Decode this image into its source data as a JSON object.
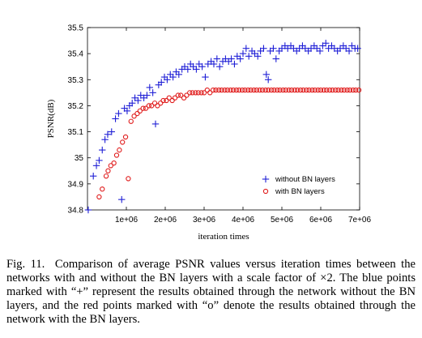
{
  "chart_data": {
    "type": "scatter",
    "title": "",
    "xlabel": "iteration times",
    "ylabel": "PSNR(dB)",
    "xlim": [
      0,
      7000000
    ],
    "ylim": [
      34.8,
      35.5
    ],
    "xticks": [
      1000000,
      2000000,
      3000000,
      4000000,
      5000000,
      6000000,
      7000000
    ],
    "xtick_labels": [
      "1e+06",
      "2e+06",
      "3e+06",
      "4e+06",
      "5e+06",
      "6e+06",
      "7e+06"
    ],
    "yticks": [
      34.8,
      34.9,
      35.0,
      35.1,
      35.2,
      35.3,
      35.4,
      35.5
    ],
    "ytick_labels": [
      "34.8",
      "34.9",
      "35",
      "35.1",
      "35.2",
      "35.3",
      "35.4",
      "35.5"
    ],
    "legend_position": "lower-right",
    "series": [
      {
        "name": "without BN layers",
        "marker": "plus",
        "color": "#1f1fd6",
        "points": [
          [
            20000,
            34.8
          ],
          [
            150000,
            34.93
          ],
          [
            230000,
            34.97
          ],
          [
            300000,
            34.99
          ],
          [
            380000,
            35.03
          ],
          [
            450000,
            35.07
          ],
          [
            520000,
            35.09
          ],
          [
            620000,
            35.1
          ],
          [
            720000,
            35.15
          ],
          [
            800000,
            35.17
          ],
          [
            880000,
            34.84
          ],
          [
            950000,
            35.19
          ],
          [
            1020000,
            35.18
          ],
          [
            1080000,
            35.2
          ],
          [
            1150000,
            35.21
          ],
          [
            1220000,
            35.23
          ],
          [
            1300000,
            35.22
          ],
          [
            1370000,
            35.24
          ],
          [
            1450000,
            35.23
          ],
          [
            1530000,
            35.24
          ],
          [
            1600000,
            35.27
          ],
          [
            1680000,
            35.25
          ],
          [
            1750000,
            35.13
          ],
          [
            1830000,
            35.28
          ],
          [
            1900000,
            35.29
          ],
          [
            1980000,
            35.31
          ],
          [
            2050000,
            35.3
          ],
          [
            2130000,
            35.32
          ],
          [
            2200000,
            35.31
          ],
          [
            2280000,
            35.33
          ],
          [
            2350000,
            35.32
          ],
          [
            2430000,
            35.34
          ],
          [
            2500000,
            35.35
          ],
          [
            2580000,
            35.34
          ],
          [
            2650000,
            35.36
          ],
          [
            2720000,
            35.35
          ],
          [
            2800000,
            35.34
          ],
          [
            2870000,
            35.36
          ],
          [
            2950000,
            35.35
          ],
          [
            3030000,
            35.31
          ],
          [
            3100000,
            35.36
          ],
          [
            3180000,
            35.37
          ],
          [
            3250000,
            35.36
          ],
          [
            3330000,
            35.38
          ],
          [
            3400000,
            35.35
          ],
          [
            3480000,
            35.37
          ],
          [
            3550000,
            35.38
          ],
          [
            3630000,
            35.37
          ],
          [
            3700000,
            35.38
          ],
          [
            3780000,
            35.36
          ],
          [
            3850000,
            35.39
          ],
          [
            3930000,
            35.38
          ],
          [
            4000000,
            35.4
          ],
          [
            4080000,
            35.42
          ],
          [
            4150000,
            35.39
          ],
          [
            4230000,
            35.41
          ],
          [
            4300000,
            35.4
          ],
          [
            4380000,
            35.39
          ],
          [
            4450000,
            35.41
          ],
          [
            4530000,
            35.42
          ],
          [
            4600000,
            35.32
          ],
          [
            4650000,
            35.3
          ],
          [
            4700000,
            35.41
          ],
          [
            4780000,
            35.42
          ],
          [
            4850000,
            35.38
          ],
          [
            4930000,
            35.41
          ],
          [
            5000000,
            35.42
          ],
          [
            5080000,
            35.43
          ],
          [
            5150000,
            35.42
          ],
          [
            5230000,
            35.43
          ],
          [
            5300000,
            35.42
          ],
          [
            5380000,
            35.41
          ],
          [
            5450000,
            35.42
          ],
          [
            5530000,
            35.43
          ],
          [
            5600000,
            35.42
          ],
          [
            5680000,
            35.41
          ],
          [
            5750000,
            35.42
          ],
          [
            5830000,
            35.43
          ],
          [
            5900000,
            35.42
          ],
          [
            5980000,
            35.41
          ],
          [
            6050000,
            35.43
          ],
          [
            6130000,
            35.44
          ],
          [
            6200000,
            35.42
          ],
          [
            6280000,
            35.43
          ],
          [
            6350000,
            35.42
          ],
          [
            6430000,
            35.41
          ],
          [
            6500000,
            35.42
          ],
          [
            6580000,
            35.43
          ],
          [
            6650000,
            35.42
          ],
          [
            6730000,
            35.41
          ],
          [
            6800000,
            35.43
          ],
          [
            6880000,
            35.42
          ],
          [
            6950000,
            35.42
          ]
        ]
      },
      {
        "name": "with BN layers",
        "marker": "circle",
        "color": "#e01b1b",
        "points": [
          [
            300000,
            34.85
          ],
          [
            380000,
            34.88
          ],
          [
            480000,
            34.93
          ],
          [
            530000,
            34.95
          ],
          [
            600000,
            34.97
          ],
          [
            680000,
            34.98
          ],
          [
            750000,
            35.01
          ],
          [
            820000,
            35.03
          ],
          [
            900000,
            35.06
          ],
          [
            980000,
            35.08
          ],
          [
            1050000,
            34.92
          ],
          [
            1120000,
            35.14
          ],
          [
            1200000,
            35.16
          ],
          [
            1280000,
            35.17
          ],
          [
            1350000,
            35.18
          ],
          [
            1430000,
            35.19
          ],
          [
            1500000,
            35.19
          ],
          [
            1580000,
            35.2
          ],
          [
            1650000,
            35.2
          ],
          [
            1730000,
            35.21
          ],
          [
            1800000,
            35.2
          ],
          [
            1880000,
            35.21
          ],
          [
            1950000,
            35.22
          ],
          [
            2030000,
            35.22
          ],
          [
            2100000,
            35.23
          ],
          [
            2180000,
            35.22
          ],
          [
            2250000,
            35.23
          ],
          [
            2330000,
            35.24
          ],
          [
            2400000,
            35.24
          ],
          [
            2480000,
            35.23
          ],
          [
            2550000,
            35.24
          ],
          [
            2630000,
            35.25
          ],
          [
            2700000,
            35.25
          ],
          [
            2780000,
            35.25
          ],
          [
            2850000,
            35.25
          ],
          [
            2930000,
            35.25
          ],
          [
            3000000,
            35.25
          ],
          [
            3080000,
            35.26
          ],
          [
            3150000,
            35.25
          ],
          [
            3230000,
            35.26
          ],
          [
            3300000,
            35.26
          ],
          [
            3380000,
            35.26
          ],
          [
            3450000,
            35.26
          ],
          [
            3530000,
            35.26
          ],
          [
            3600000,
            35.26
          ],
          [
            3680000,
            35.26
          ],
          [
            3750000,
            35.26
          ],
          [
            3830000,
            35.26
          ],
          [
            3900000,
            35.26
          ],
          [
            3980000,
            35.26
          ],
          [
            4050000,
            35.26
          ],
          [
            4130000,
            35.26
          ],
          [
            4200000,
            35.26
          ],
          [
            4280000,
            35.26
          ],
          [
            4350000,
            35.26
          ],
          [
            4430000,
            35.26
          ],
          [
            4500000,
            35.26
          ],
          [
            4580000,
            35.26
          ],
          [
            4650000,
            35.26
          ],
          [
            4730000,
            35.26
          ],
          [
            4800000,
            35.26
          ],
          [
            4880000,
            35.26
          ],
          [
            4950000,
            35.26
          ],
          [
            5030000,
            35.26
          ],
          [
            5100000,
            35.26
          ],
          [
            5180000,
            35.26
          ],
          [
            5250000,
            35.26
          ],
          [
            5330000,
            35.26
          ],
          [
            5400000,
            35.26
          ],
          [
            5480000,
            35.26
          ],
          [
            5550000,
            35.26
          ],
          [
            5630000,
            35.26
          ],
          [
            5700000,
            35.26
          ],
          [
            5780000,
            35.26
          ],
          [
            5850000,
            35.26
          ],
          [
            5930000,
            35.26
          ],
          [
            6000000,
            35.26
          ],
          [
            6080000,
            35.26
          ],
          [
            6150000,
            35.26
          ],
          [
            6230000,
            35.26
          ],
          [
            6300000,
            35.26
          ],
          [
            6380000,
            35.26
          ],
          [
            6450000,
            35.26
          ],
          [
            6530000,
            35.26
          ],
          [
            6600000,
            35.26
          ],
          [
            6680000,
            35.26
          ],
          [
            6750000,
            35.26
          ],
          [
            6830000,
            35.26
          ],
          [
            6900000,
            35.26
          ],
          [
            6980000,
            35.26
          ]
        ]
      }
    ]
  },
  "caption": {
    "label": "Fig. 11.",
    "text": "Comparison of average PSNR values versus iteration times between the networks with and without the BN layers with a scale factor of ×2. The blue points marked with “+” represent the results obtained through the network without the BN layers, and the red points marked with “o” denote the results obtained through the network with the BN layers."
  }
}
